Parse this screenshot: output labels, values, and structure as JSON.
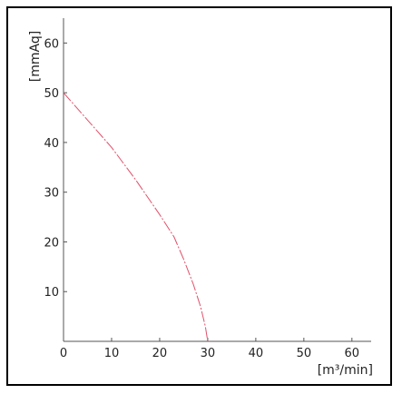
{
  "chart_data": {
    "type": "line",
    "title": "",
    "xlabel": "[m³/min]",
    "ylabel": "[mmAq]",
    "xlim": [
      0,
      64
    ],
    "ylim": [
      0,
      65
    ],
    "x_ticks": [
      "0",
      "10",
      "20",
      "30",
      "40",
      "50",
      "60"
    ],
    "y_ticks": [
      "10",
      "20",
      "30",
      "40",
      "50",
      "60"
    ],
    "grid": false,
    "legend": "none",
    "series": [
      {
        "color": "#e0506a",
        "line_style": "dash-dot",
        "x": [
          0,
          5,
          10,
          15,
          20,
          23,
          25,
          27,
          28.5,
          29.5,
          30
        ],
        "y": [
          50,
          44.5,
          39,
          32.5,
          25.5,
          21,
          16.5,
          11.5,
          7,
          3,
          0
        ]
      }
    ]
  }
}
